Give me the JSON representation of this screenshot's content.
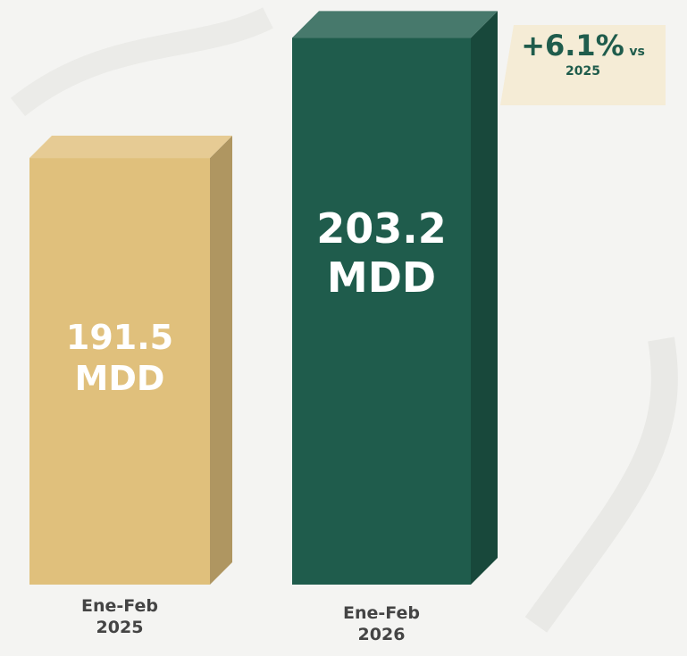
{
  "chart_data": {
    "type": "bar3d",
    "categories": [
      "Ene-Feb 2025",
      "Ene-Feb 2026"
    ],
    "values": [
      191.5,
      203.2
    ],
    "value_labels": [
      "191.5 MDD",
      "203.2 MDD"
    ],
    "colors": [
      "#e0c07c",
      "#1f5c4c"
    ],
    "ylim": [
      150,
      210
    ],
    "annotation": [
      "+6.1%",
      "vs",
      "2025"
    ]
  }
}
